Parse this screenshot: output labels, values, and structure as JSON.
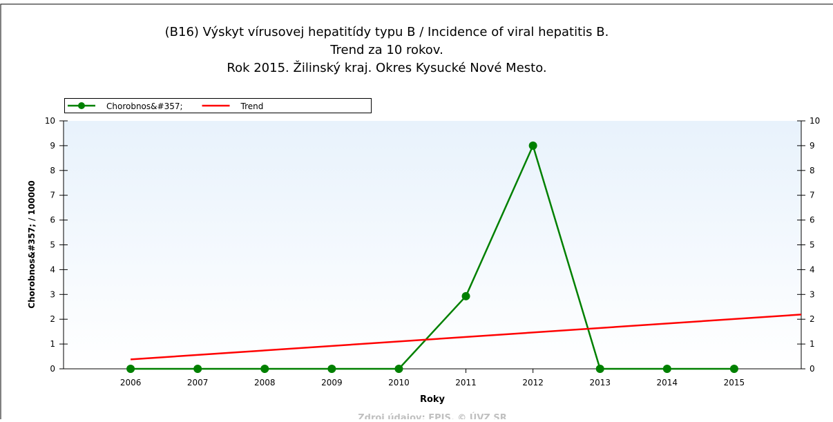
{
  "chart_data": {
    "type": "line",
    "title": [
      "(B16) Výskyt vírusovej hepatitídy typu B / Incidence of viral hepatitis B.",
      "Trend za 10 rokov.",
      "Rok 2015. Žilinský kraj. Okres Kysucké Nové Mesto."
    ],
    "x": [
      2006,
      2007,
      2008,
      2009,
      2010,
      2011,
      2012,
      2013,
      2014,
      2015
    ],
    "series": [
      {
        "name": "Chorobnos&#357;",
        "color": "#008000",
        "values": [
          0,
          0,
          0,
          0,
          0,
          2.93,
          9,
          0,
          0,
          0
        ]
      },
      {
        "name": "Trend",
        "color": "#ff0000",
        "x": [
          2006,
          2016
        ],
        "values": [
          0.38,
          2.19
        ]
      }
    ],
    "xlim": [
      2005,
      2016
    ],
    "xticks": [
      2006,
      2007,
      2008,
      2009,
      2010,
      2011,
      2012,
      2013,
      2014,
      2015
    ],
    "ylim": [
      0,
      10
    ],
    "yticks": [
      0,
      1,
      2,
      3,
      4,
      5,
      6,
      7,
      8,
      9,
      10
    ],
    "x_label": "Roky",
    "y_label": "Chorobnos&#357; / 100000",
    "source": "Zdroj údajov: EPIS, © ÚVZ SR",
    "legend": "top-left"
  }
}
